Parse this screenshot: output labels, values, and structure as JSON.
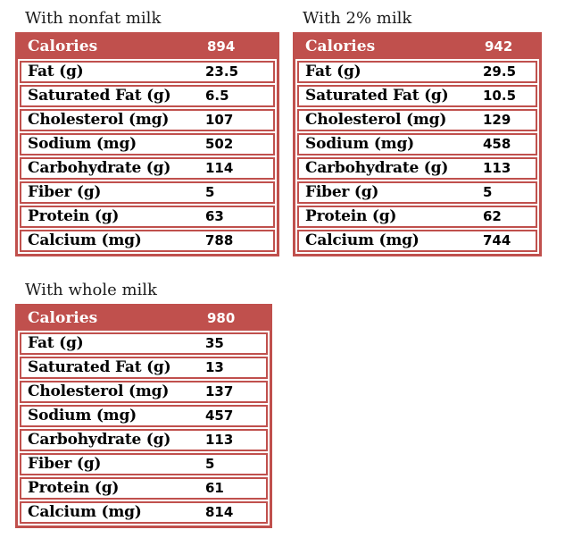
{
  "colors": {
    "accent_red": "#c0504d",
    "header_text": "#ffffff",
    "body_text": "#000000",
    "background": "#ffffff"
  },
  "chart_data": [
    {
      "type": "table",
      "title": "With nonfat milk",
      "header": {
        "label": "Calories",
        "value": 894
      },
      "rows": [
        {
          "label": "Fat (g)",
          "value": 23.5
        },
        {
          "label": "Saturated Fat (g)",
          "value": 6.5
        },
        {
          "label": "Cholesterol (mg)",
          "value": 107
        },
        {
          "label": "Sodium (mg)",
          "value": 502
        },
        {
          "label": "Carbohydrate (g)",
          "value": 114
        },
        {
          "label": "Fiber (g)",
          "value": 5
        },
        {
          "label": "Protein (g)",
          "value": 63
        },
        {
          "label": "Calcium (mg)",
          "value": 788
        }
      ]
    },
    {
      "type": "table",
      "title": "With 2% milk",
      "header": {
        "label": "Calories",
        "value": 942
      },
      "rows": [
        {
          "label": "Fat (g)",
          "value": 29.5
        },
        {
          "label": "Saturated Fat (g)",
          "value": 10.5
        },
        {
          "label": "Cholesterol (mg)",
          "value": 129
        },
        {
          "label": "Sodium (mg)",
          "value": 458
        },
        {
          "label": "Carbohydrate (g)",
          "value": 113
        },
        {
          "label": "Fiber (g)",
          "value": 5
        },
        {
          "label": "Protein (g)",
          "value": 62
        },
        {
          "label": "Calcium (mg)",
          "value": 744
        }
      ]
    },
    {
      "type": "table",
      "title": "With whole milk",
      "header": {
        "label": "Calories",
        "value": 980
      },
      "rows": [
        {
          "label": "Fat (g)",
          "value": 35
        },
        {
          "label": "Saturated Fat (g)",
          "value": 13
        },
        {
          "label": "Cholesterol (mg)",
          "value": 137
        },
        {
          "label": "Sodium (mg)",
          "value": 457
        },
        {
          "label": "Carbohydrate (g)",
          "value": 113
        },
        {
          "label": "Fiber (g)",
          "value": 5
        },
        {
          "label": "Protein (g)",
          "value": 61
        },
        {
          "label": "Calcium (mg)",
          "value": 814
        }
      ]
    }
  ]
}
